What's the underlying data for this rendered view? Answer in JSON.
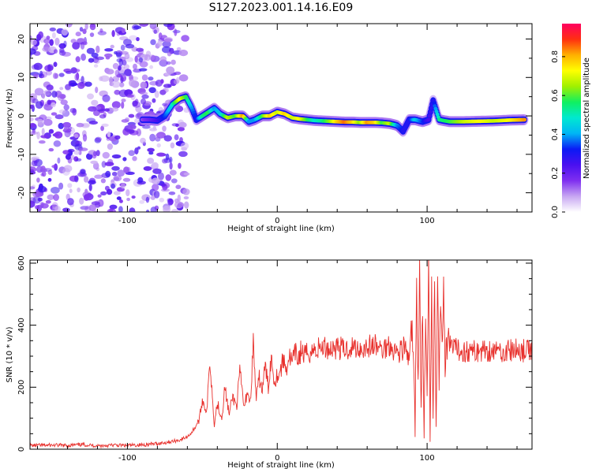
{
  "page_title": "S127.2023.001.14.16.E09",
  "colors": {
    "snr_line": "#e8302c",
    "axis": "#000000",
    "colormap": [
      "#ffffff",
      "#c7a6f2",
      "#7f2ff0",
      "#4a10f0",
      "#0b1af5",
      "#00b5f5",
      "#00e9d0",
      "#10f060",
      "#a0f000",
      "#ffff00",
      "#ffb000",
      "#ff3010",
      "#ff0060"
    ]
  },
  "chart_data": [
    {
      "type": "heatmap",
      "xlabel": "Height of straight line (km)",
      "ylabel": "Frequency (Hz)",
      "xlim": [
        -165,
        170
      ],
      "ylim": [
        -25,
        24
      ],
      "x_ticks": [
        -100,
        0,
        100
      ],
      "y_ticks": [
        -20,
        -10,
        0,
        10,
        20
      ],
      "colorbar": {
        "label": "Normalized spectral amplitude",
        "range": [
          0.0,
          0.97
        ],
        "ticks": [
          "0.0",
          "0.2",
          "0.4",
          "0.6",
          "0.8"
        ]
      },
      "ridge": [
        {
          "x": -90,
          "y": -1.0,
          "a": 0.15
        },
        {
          "x": -85,
          "y": -1.0,
          "a": 0.2
        },
        {
          "x": -80,
          "y": -1.2,
          "a": 0.25
        },
        {
          "x": -75,
          "y": 0.0,
          "a": 0.35
        },
        {
          "x": -70,
          "y": 3.0,
          "a": 0.5
        },
        {
          "x": -65,
          "y": 4.5,
          "a": 0.75
        },
        {
          "x": -61,
          "y": 5.0,
          "a": 0.6
        },
        {
          "x": -57,
          "y": 2.0,
          "a": 0.4
        },
        {
          "x": -54,
          "y": -1.0,
          "a": 0.3
        },
        {
          "x": -50,
          "y": 0.0,
          "a": 0.55
        },
        {
          "x": -46,
          "y": 1.0,
          "a": 0.6
        },
        {
          "x": -42,
          "y": 2.0,
          "a": 0.4
        },
        {
          "x": -38,
          "y": 0.5,
          "a": 0.45
        },
        {
          "x": -33,
          "y": -0.5,
          "a": 0.7
        },
        {
          "x": -28,
          "y": 0.0,
          "a": 0.6
        },
        {
          "x": -23,
          "y": 0.0,
          "a": 0.85
        },
        {
          "x": -19,
          "y": -1.5,
          "a": 0.4
        },
        {
          "x": -15,
          "y": -1.0,
          "a": 0.4
        },
        {
          "x": -10,
          "y": 0.0,
          "a": 0.6
        },
        {
          "x": -5,
          "y": 0.0,
          "a": 0.8
        },
        {
          "x": 0,
          "y": 1.0,
          "a": 0.7
        },
        {
          "x": 5,
          "y": 0.5,
          "a": 0.8
        },
        {
          "x": 10,
          "y": -0.5,
          "a": 0.7
        },
        {
          "x": 15,
          "y": -0.8,
          "a": 0.75
        },
        {
          "x": 20,
          "y": -1.0,
          "a": 0.6
        },
        {
          "x": 25,
          "y": -1.2,
          "a": 0.5
        },
        {
          "x": 30,
          "y": -1.3,
          "a": 0.55
        },
        {
          "x": 35,
          "y": -1.4,
          "a": 0.65
        },
        {
          "x": 40,
          "y": -1.5,
          "a": 0.8
        },
        {
          "x": 45,
          "y": -1.6,
          "a": 0.88
        },
        {
          "x": 50,
          "y": -1.6,
          "a": 0.8
        },
        {
          "x": 55,
          "y": -1.7,
          "a": 0.65
        },
        {
          "x": 60,
          "y": -1.7,
          "a": 0.85
        },
        {
          "x": 65,
          "y": -1.7,
          "a": 0.8
        },
        {
          "x": 70,
          "y": -1.8,
          "a": 0.6
        },
        {
          "x": 75,
          "y": -2.0,
          "a": 0.7
        },
        {
          "x": 80,
          "y": -2.5,
          "a": 0.4
        },
        {
          "x": 84,
          "y": -4.0,
          "a": 0.3
        },
        {
          "x": 88,
          "y": -1.0,
          "a": 0.3
        },
        {
          "x": 92,
          "y": -1.0,
          "a": 0.45
        },
        {
          "x": 97,
          "y": -1.5,
          "a": 0.35
        },
        {
          "x": 101,
          "y": -1.0,
          "a": 0.25
        },
        {
          "x": 104,
          "y": 4.0,
          "a": 0.3
        },
        {
          "x": 108,
          "y": -1.0,
          "a": 0.55
        },
        {
          "x": 115,
          "y": -1.5,
          "a": 0.6
        },
        {
          "x": 125,
          "y": -1.5,
          "a": 0.7
        },
        {
          "x": 135,
          "y": -1.4,
          "a": 0.75
        },
        {
          "x": 145,
          "y": -1.3,
          "a": 0.7
        },
        {
          "x": 155,
          "y": -1.1,
          "a": 0.75
        },
        {
          "x": 165,
          "y": -1.0,
          "a": 0.85
        }
      ]
    },
    {
      "type": "line",
      "xlabel": "Height of straight line (km)",
      "ylabel": "SNR (10 * v/v)",
      "xlim": [
        -165,
        170
      ],
      "ylim": [
        0,
        610
      ],
      "x_ticks": [
        -100,
        0,
        100
      ],
      "y_ticks": [
        0,
        200,
        400,
        600
      ],
      "series": [
        {
          "x": [
            -165,
            -150,
            -140,
            -130,
            -120,
            -110,
            -100,
            -90,
            -80,
            -70,
            -65,
            -60,
            -57,
            -55,
            -52,
            -50,
            -47,
            -45,
            -42,
            -40,
            -37,
            -35,
            -32,
            -30,
            -27,
            -25,
            -22,
            -20,
            -18,
            -16,
            -14,
            -12,
            -10,
            -8,
            -6,
            -4,
            -2,
            0,
            2,
            4,
            6,
            8,
            10,
            12,
            14,
            16,
            18,
            20,
            25,
            30,
            35,
            40,
            45,
            50,
            55,
            60,
            65,
            70,
            75,
            80,
            85,
            88,
            90,
            92,
            93,
            94,
            95,
            96,
            97,
            98,
            99,
            100,
            101,
            102,
            103,
            104,
            105,
            106,
            107,
            108,
            109,
            110,
            111,
            112,
            113,
            115,
            120,
            130,
            140,
            150,
            160,
            170
          ],
          "y": [
            12,
            13,
            12,
            15,
            11,
            13,
            12,
            14,
            18,
            25,
            30,
            40,
            55,
            70,
            95,
            160,
            120,
            290,
            80,
            150,
            100,
            200,
            110,
            170,
            140,
            250,
            130,
            190,
            150,
            340,
            160,
            230,
            190,
            270,
            200,
            300,
            220,
            240,
            250,
            290,
            260,
            300,
            280,
            310,
            290,
            320,
            300,
            310,
            320,
            330,
            325,
            330,
            320,
            330,
            325,
            330,
            335,
            320,
            340,
            310,
            330,
            280,
            400,
            60,
            560,
            200,
            610,
            100,
            480,
            30,
            430,
            150,
            590,
            20,
            540,
            120,
            600,
            60,
            580,
            180,
            500,
            300,
            590,
            250,
            340,
            330,
            320,
            315,
            320,
            315,
            320,
            315
          ]
        }
      ]
    }
  ]
}
